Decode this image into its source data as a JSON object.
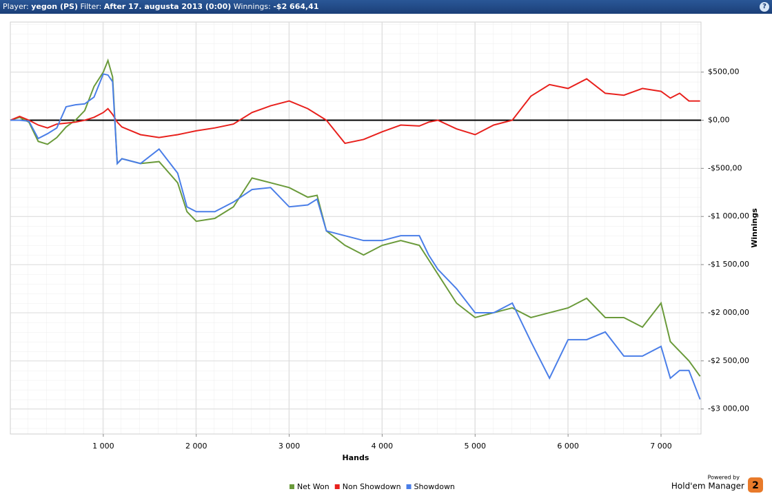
{
  "header": {
    "player_label": "Player:",
    "player": "yegon (PS)",
    "filter_label": "Filter:",
    "filter": "After 17. augusta 2013 (0:00)",
    "winnings_label": "Winnings:",
    "winnings": "-$2 664,41",
    "help": "?"
  },
  "branding": {
    "powered": "Powered by",
    "name": "Hold'em Manager",
    "version": "2"
  },
  "chart_data": {
    "type": "line",
    "x_label": "Hands",
    "y_label": "Winnings",
    "x": [
      0,
      100,
      200,
      300,
      400,
      500,
      600,
      700,
      800,
      900,
      1000,
      1050,
      1100,
      1150,
      1200,
      1400,
      1600,
      1800,
      1900,
      2000,
      2200,
      2400,
      2600,
      2800,
      3000,
      3200,
      3300,
      3400,
      3600,
      3800,
      4000,
      4200,
      4400,
      4500,
      4600,
      4800,
      5000,
      5200,
      5400,
      5600,
      5800,
      6000,
      6200,
      6400,
      6600,
      6800,
      7000,
      7100,
      7200,
      7300,
      7420
    ],
    "series": [
      {
        "name": "Net Won",
        "color": "#6a9a3a",
        "values": [
          0,
          30,
          -20,
          -220,
          -250,
          -180,
          -70,
          0,
          100,
          350,
          500,
          620,
          450,
          -450,
          -400,
          -450,
          -430,
          -650,
          -950,
          -1050,
          -1020,
          -900,
          -600,
          -650,
          -700,
          -800,
          -780,
          -1150,
          -1300,
          -1400,
          -1300,
          -1250,
          -1300,
          -1450,
          -1600,
          -1900,
          -2050,
          -2000,
          -1950,
          -2050,
          -2000,
          -1950,
          -1850,
          -2050,
          -2050,
          -2150,
          -1900,
          -2300,
          -2400,
          -2500,
          -2660
        ]
      },
      {
        "name": "Non Showdown",
        "color": "#e8201c",
        "values": [
          0,
          40,
          0,
          -50,
          -80,
          -40,
          -30,
          -20,
          0,
          30,
          80,
          120,
          60,
          -20,
          -70,
          -150,
          -180,
          -150,
          -130,
          -110,
          -80,
          -40,
          80,
          150,
          200,
          120,
          60,
          0,
          -240,
          -200,
          -120,
          -50,
          -60,
          -20,
          0,
          -90,
          -150,
          -50,
          0,
          250,
          370,
          330,
          430,
          280,
          260,
          330,
          300,
          230,
          280,
          200,
          200
        ]
      },
      {
        "name": "Showdown",
        "color": "#4a7ee8",
        "values": [
          0,
          0,
          -10,
          -190,
          -140,
          -80,
          140,
          160,
          170,
          240,
          480,
          470,
          400,
          -450,
          -400,
          -450,
          -300,
          -550,
          -900,
          -950,
          -950,
          -850,
          -720,
          -700,
          -900,
          -880,
          -820,
          -1150,
          -1200,
          -1250,
          -1250,
          -1200,
          -1200,
          -1400,
          -1550,
          -1750,
          -2000,
          -2000,
          -1900,
          -2300,
          -2680,
          -2280,
          -2280,
          -2200,
          -2450,
          -2450,
          -2350,
          -2680,
          -2600,
          -2600,
          -2900
        ]
      }
    ],
    "xlim": [
      0,
      7430
    ],
    "ylim": [
      -3260,
      1020
    ],
    "xticks": [
      {
        "value": 1000,
        "label": "1 000"
      },
      {
        "value": 2000,
        "label": "2 000"
      },
      {
        "value": 3000,
        "label": "3 000"
      },
      {
        "value": 4000,
        "label": "4 000"
      },
      {
        "value": 5000,
        "label": "5 000"
      },
      {
        "value": 6000,
        "label": "6 000"
      },
      {
        "value": 7000,
        "label": "7 000"
      }
    ],
    "yticks": [
      {
        "value": 500,
        "label": "$500,00"
      },
      {
        "value": 0,
        "label": "$0,00"
      },
      {
        "value": -500,
        "label": "-$500,00"
      },
      {
        "value": -1000,
        "label": "-$1 000,00"
      },
      {
        "value": -1500,
        "label": "-$1 500,00"
      },
      {
        "value": -2000,
        "label": "-$2 000,00"
      },
      {
        "value": -2500,
        "label": "-$2 500,00"
      },
      {
        "value": -3000,
        "label": "-$3 000,00"
      }
    ],
    "grid": true,
    "legend": "bottom"
  }
}
